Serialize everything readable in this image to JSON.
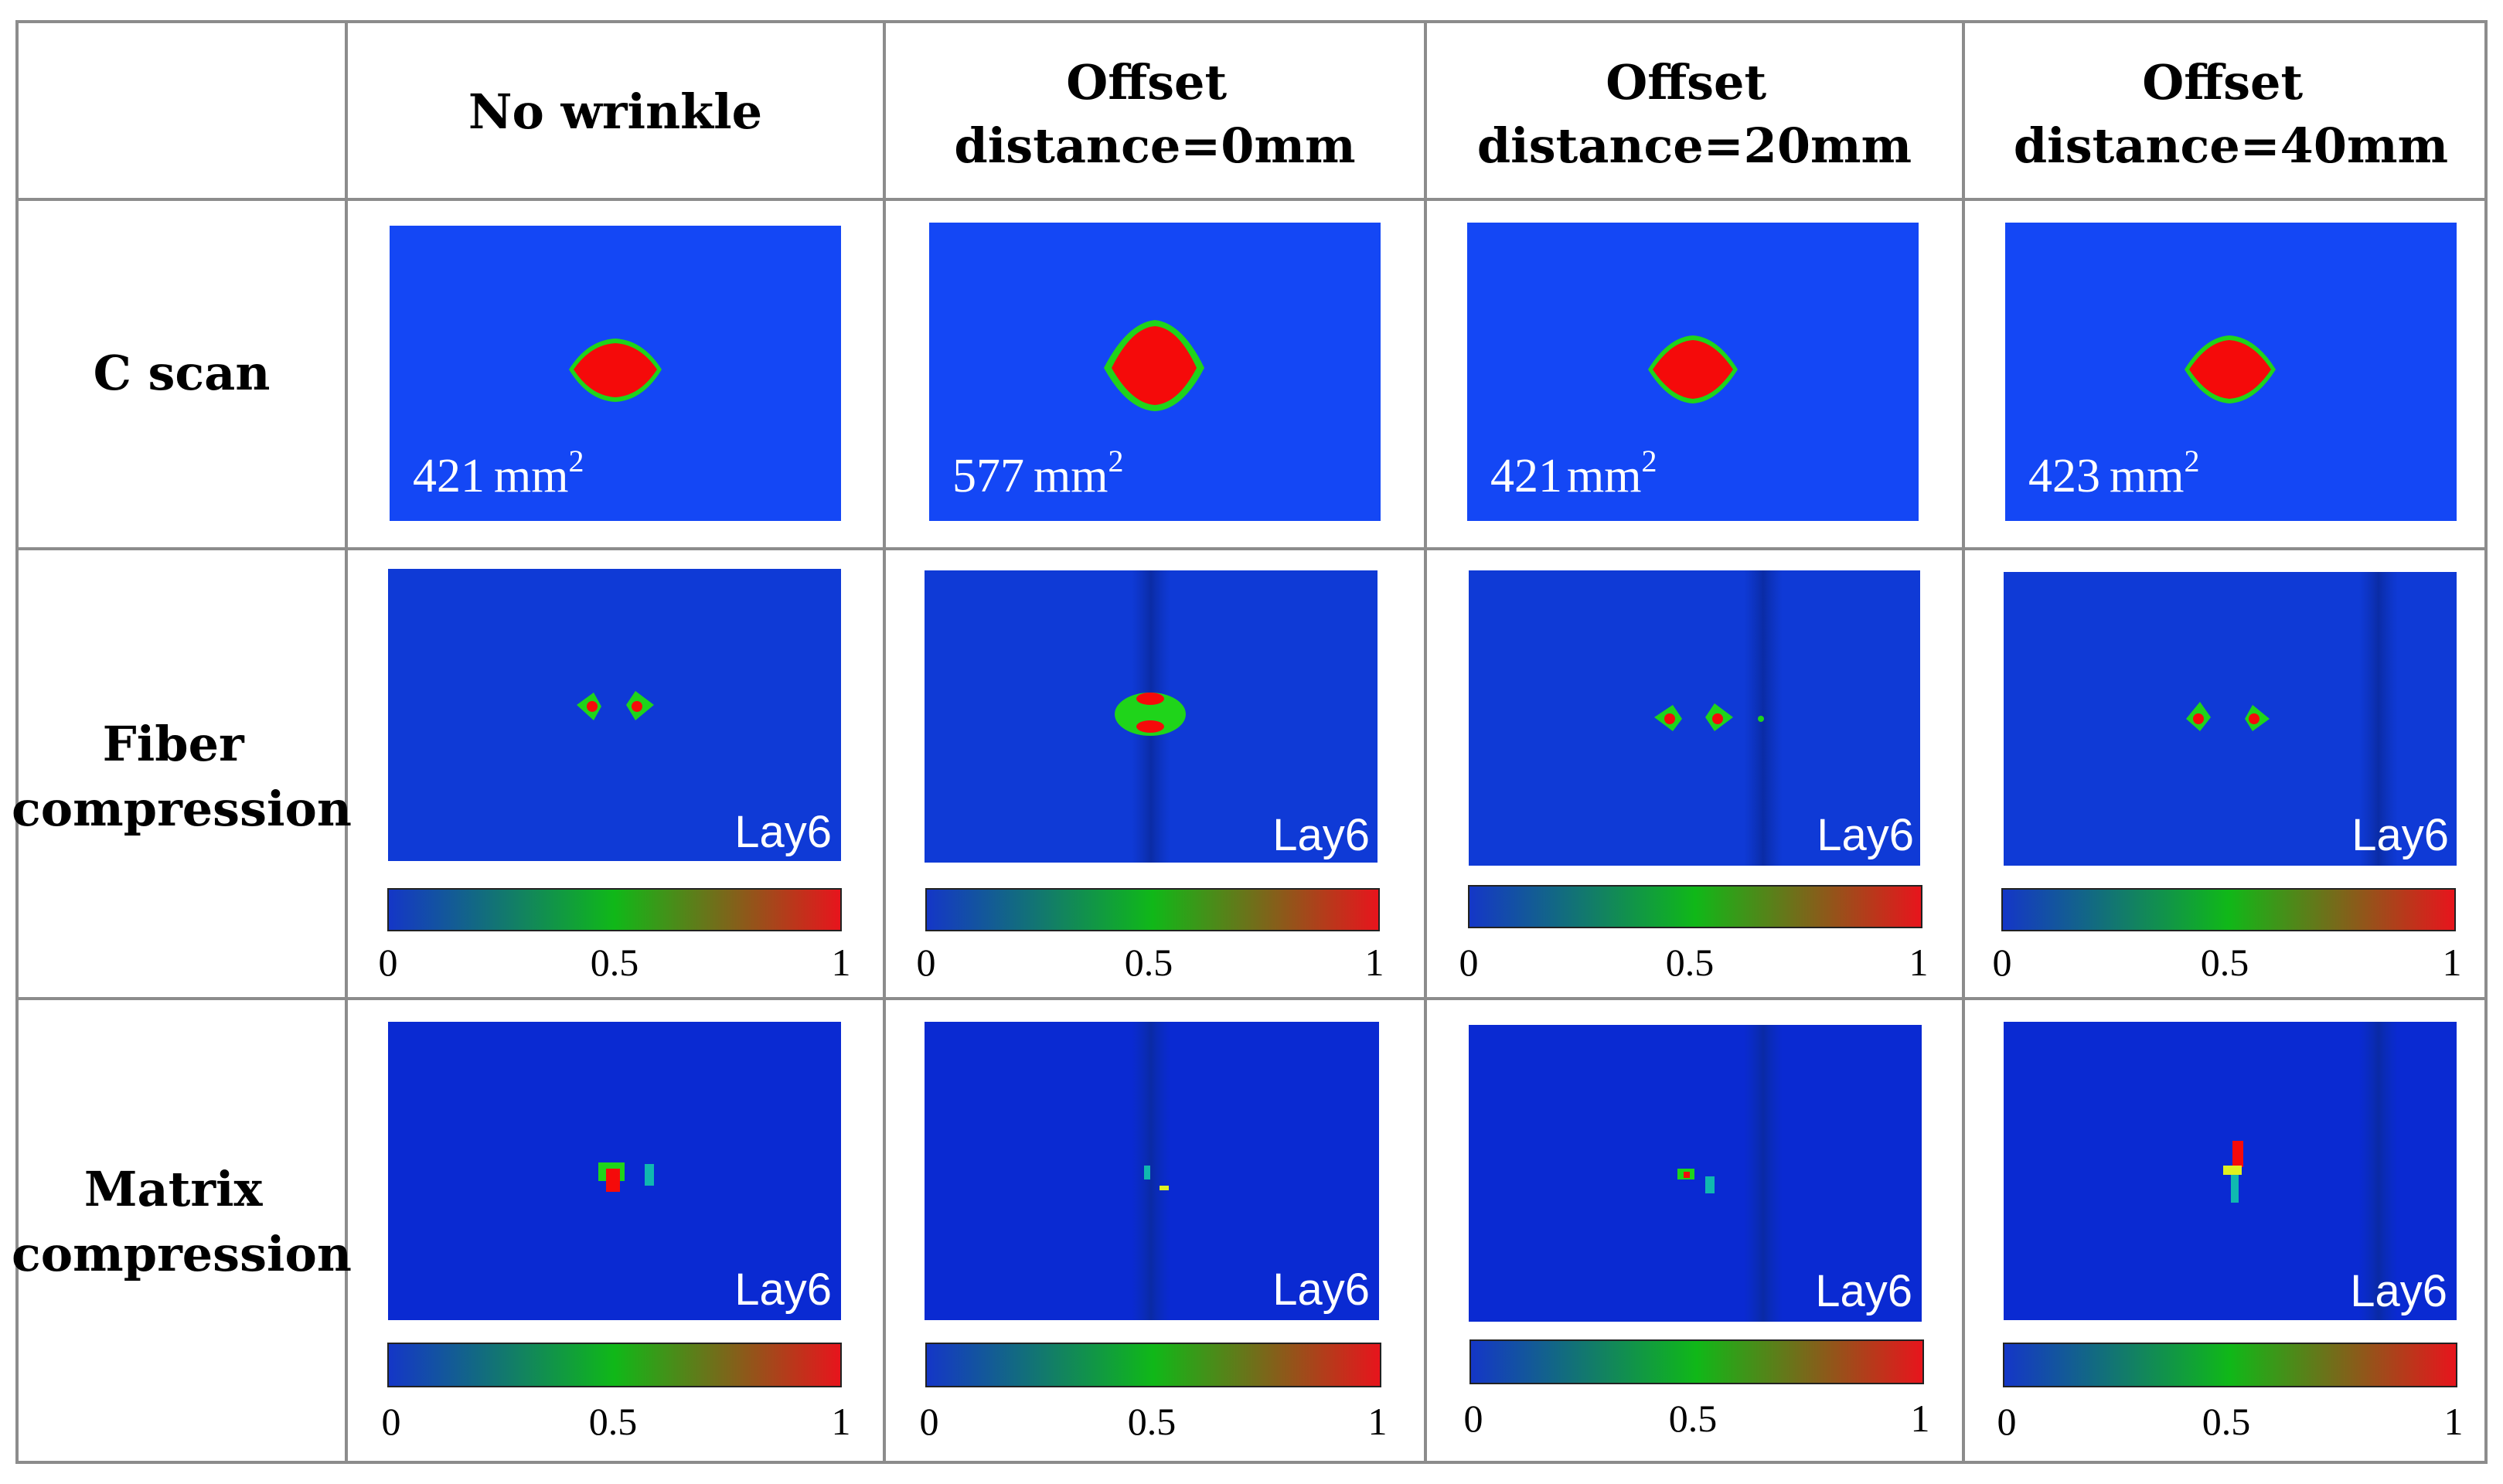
{
  "table": {
    "columns": [
      "No wrinkle",
      "Offset distance=0mm",
      "Offset distance=20mm",
      "Offset distance=40mm"
    ],
    "column_lines": [
      [
        "No wrinkle"
      ],
      [
        "Offset",
        "distance=0mm"
      ],
      [
        "Offset",
        "distance=20mm"
      ],
      [
        "Offset",
        "distance=40mm"
      ]
    ],
    "rows": [
      {
        "label_lines": [
          "C scan"
        ]
      },
      {
        "label_lines": [
          "Fiber",
          "compression"
        ]
      },
      {
        "label_lines": [
          "Matrix",
          "compression"
        ]
      }
    ]
  },
  "c_scan": {
    "areas": [
      "421",
      "577",
      "421",
      "423"
    ],
    "area_unit_lines": [
      [
        "mm",
        "2"
      ],
      [
        "mm",
        "2"
      ],
      [
        "mm",
        "2"
      ],
      [
        "mm",
        "2"
      ]
    ]
  },
  "layer_label": "Lay6",
  "colorbar": {
    "ticks": [
      "0",
      "0.5",
      "1"
    ],
    "colors": [
      "#1436c8",
      "#10b818",
      "#e8141c"
    ]
  },
  "colors": {
    "cscan_background": "#1447f5",
    "field_background": "#0f3ad6",
    "damage_red": "#f50a0a",
    "damage_green": "#1fd41a",
    "grid_line": "#8c8c8c"
  }
}
